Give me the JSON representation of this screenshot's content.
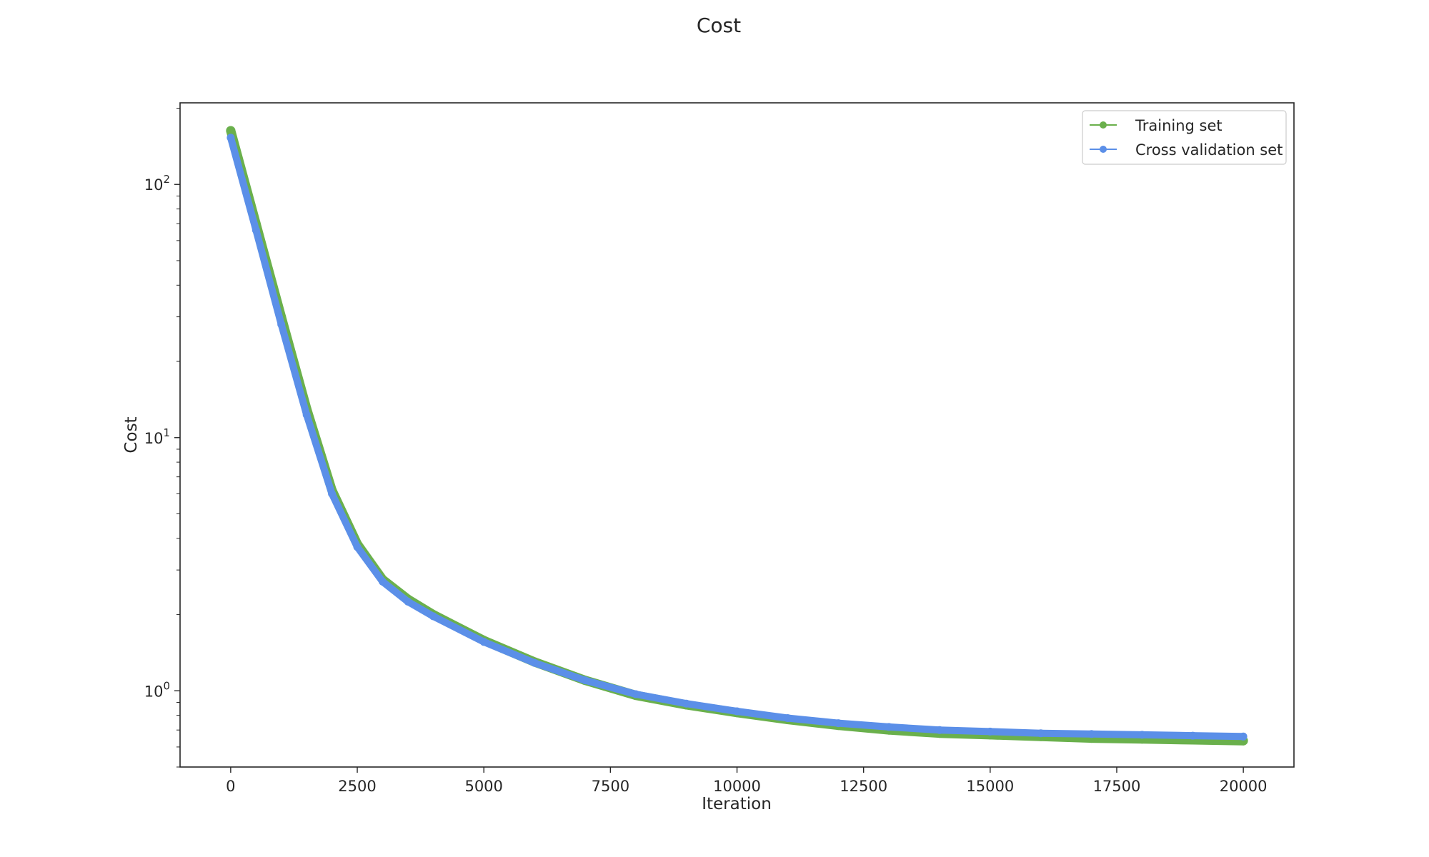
{
  "chart_data": {
    "type": "line",
    "title": "Cost",
    "xlabel": "Iteration",
    "ylabel": "Cost",
    "yscale": "log",
    "xlim": [
      -1000,
      21000
    ],
    "ylim": [
      0.5,
      210
    ],
    "xticks": [
      0,
      2500,
      5000,
      7500,
      10000,
      12500,
      15000,
      17500,
      20000
    ],
    "xtick_labels": [
      "0",
      "2500",
      "5000",
      "7500",
      "10000",
      "12500",
      "15000",
      "17500",
      "20000"
    ],
    "yticks": [
      1,
      10,
      100
    ],
    "ytick_labels": [
      {
        "base": "10",
        "exp": "0"
      },
      {
        "base": "10",
        "exp": "1"
      },
      {
        "base": "10",
        "exp": "2"
      }
    ],
    "grid": false,
    "legend_position": "top-right",
    "series": [
      {
        "name": "Training set",
        "color": "#6ab04c",
        "x": [
          0,
          500,
          1000,
          1500,
          2000,
          2500,
          3000,
          3500,
          4000,
          5000,
          6000,
          7000,
          8000,
          9000,
          10000,
          11000,
          12000,
          13000,
          14000,
          15000,
          16000,
          17000,
          18000,
          19000,
          20000
        ],
        "y": [
          163,
          70,
          30,
          13,
          6.2,
          3.8,
          2.75,
          2.3,
          2.0,
          1.58,
          1.3,
          1.1,
          0.96,
          0.88,
          0.82,
          0.77,
          0.73,
          0.7,
          0.68,
          0.67,
          0.66,
          0.65,
          0.645,
          0.64,
          0.635
        ]
      },
      {
        "name": "Cross validation set",
        "color": "#5b8fe8",
        "x": [
          0,
          500,
          1000,
          1500,
          2000,
          2500,
          3000,
          3500,
          4000,
          5000,
          6000,
          7000,
          8000,
          9000,
          10000,
          11000,
          12000,
          13000,
          14000,
          15000,
          16000,
          17000,
          18000,
          19000,
          20000
        ],
        "y": [
          153,
          66,
          28,
          12.3,
          6.0,
          3.7,
          2.7,
          2.25,
          1.97,
          1.56,
          1.29,
          1.1,
          0.97,
          0.89,
          0.83,
          0.78,
          0.745,
          0.72,
          0.7,
          0.69,
          0.68,
          0.675,
          0.67,
          0.665,
          0.66
        ]
      }
    ]
  }
}
